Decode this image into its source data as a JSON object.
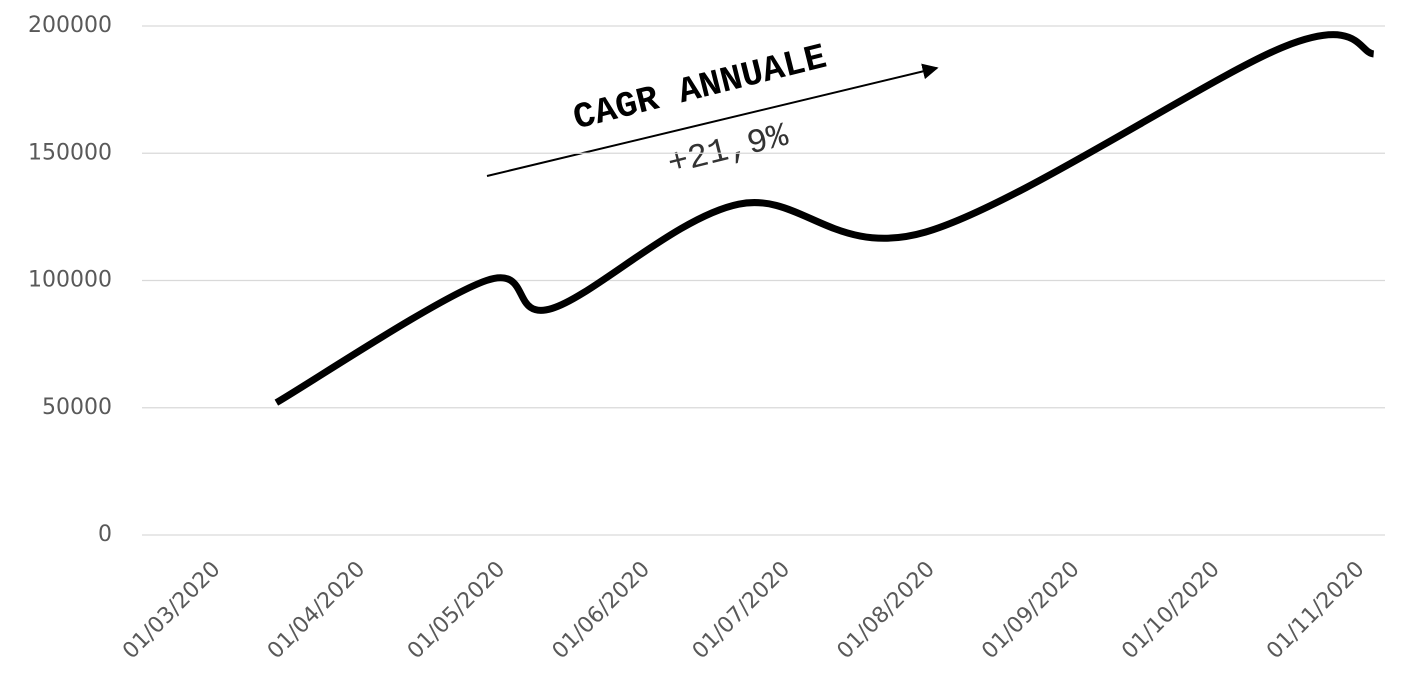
{
  "chart_data": {
    "type": "line",
    "x": [
      "12/03/2020",
      "26/04/2020",
      "10/05/2020",
      "19/06/2020",
      "29/07/2020",
      "14/10/2020",
      "02/11/2020"
    ],
    "series": [
      {
        "color": "#000000",
        "values": [
          52000,
          100000,
          89000,
          130000,
          119000,
          192000,
          189000
        ]
      }
    ],
    "xlim": [
      "01/03/2020",
      "01/11/2020"
    ],
    "xticks": [
      "01/03/2020",
      "01/04/2020",
      "01/05/2020",
      "01/06/2020",
      "01/07/2020",
      "01/08/2020",
      "01/09/2020",
      "01/10/2020",
      "01/11/2020"
    ],
    "ylim": [
      0,
      200000
    ],
    "yticks": [
      0,
      50000,
      100000,
      150000,
      200000
    ],
    "grid": true,
    "annotations": [
      "CAGR ANNUALE",
      "+21,9%"
    ]
  }
}
